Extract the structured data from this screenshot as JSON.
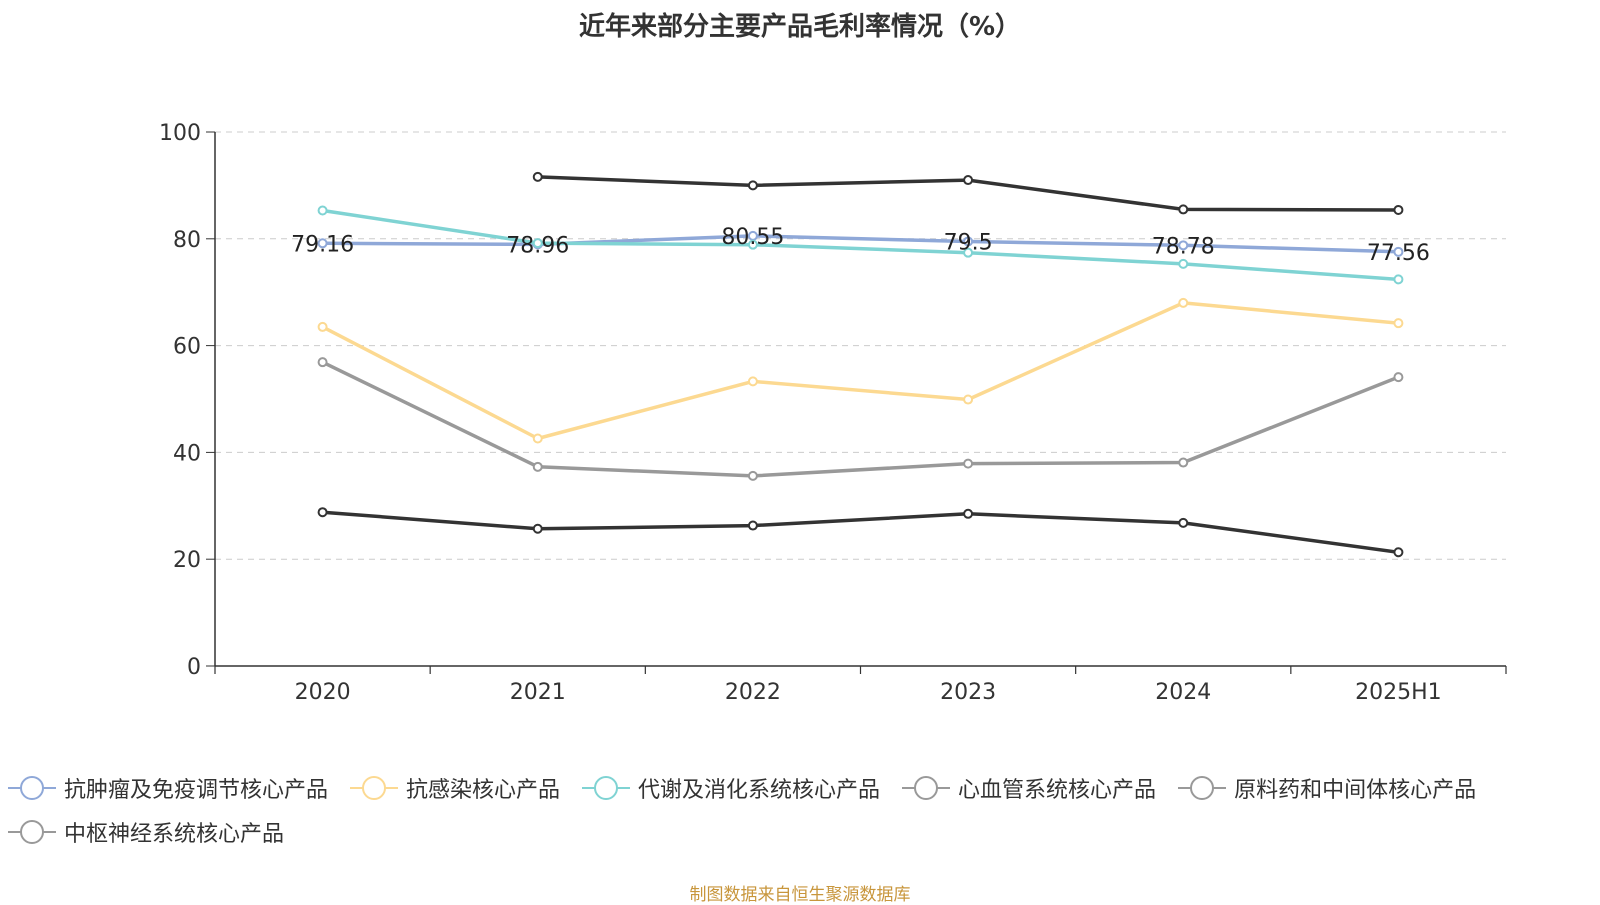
{
  "chart_data": {
    "type": "line",
    "title": "近年来部分主要产品毛利率情况（%）",
    "categories": [
      "2020",
      "2021",
      "2022",
      "2023",
      "2024",
      "2025H1"
    ],
    "ylim": [
      0,
      100
    ],
    "yticks": [
      0,
      20,
      40,
      60,
      80,
      100
    ],
    "grid": true,
    "legend_position": "bottom",
    "series": [
      {
        "name": "抗肿瘤及免疫调节核心产品",
        "color": "#8fa8d8",
        "values": [
          79.16,
          78.96,
          80.55,
          79.5,
          78.78,
          77.56
        ],
        "labels": [
          "79.16",
          "78.96",
          "80.55",
          "79.5",
          "78.78",
          "77.56"
        ]
      },
      {
        "name": "抗感染核心产品",
        "color": "#fcd991",
        "values": [
          63.5,
          42.6,
          53.3,
          49.9,
          68.0,
          64.2
        ]
      },
      {
        "name": "代谢及消化系统核心产品",
        "color": "#7fd3d3",
        "values": [
          85.3,
          79.2,
          78.9,
          77.4,
          75.3,
          72.4
        ]
      },
      {
        "name": "心血管系统核心产品",
        "color": "#333333",
        "values": [
          null,
          91.6,
          90.0,
          91.0,
          85.5,
          85.4
        ]
      },
      {
        "name": "原料药和中间体核心产品",
        "color": "#333333",
        "values": [
          28.8,
          25.7,
          26.3,
          28.5,
          26.8,
          21.3
        ]
      },
      {
        "name": "中枢神经系统核心产品",
        "color": "#999999",
        "values": [
          56.9,
          37.3,
          35.6,
          37.9,
          38.1,
          54.1
        ]
      }
    ],
    "legend_colors": [
      "#8fa8d8",
      "#fcd991",
      "#7fd3d3",
      "#999999",
      "#999999",
      "#999999"
    ]
  },
  "source_note": "制图数据来自恒生聚源数据库"
}
